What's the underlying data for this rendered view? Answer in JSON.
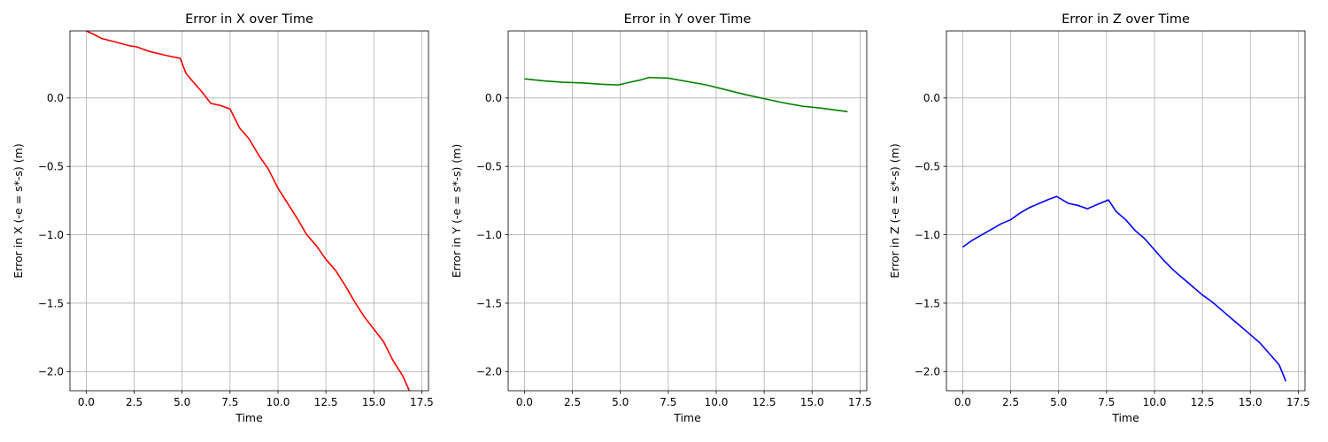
{
  "chart_data": [
    {
      "type": "line",
      "title": "Error in X over Time",
      "xlabel": "Time",
      "ylabel": "Error in X (-e = s*-s) (m)",
      "xlim": [
        -0.85,
        17.85
      ],
      "ylim": [
        -2.14,
        0.49
      ],
      "xticks": [
        0.0,
        2.5,
        5.0,
        7.5,
        10.0,
        12.5,
        15.0,
        17.5
      ],
      "xtick_labels": [
        "0.0",
        "2.5",
        "5.0",
        "7.5",
        "10.0",
        "12.5",
        "15.0",
        "17.5"
      ],
      "yticks": [
        0.0,
        -0.5,
        -1.0,
        -1.5,
        -2.0
      ],
      "ytick_labels": [
        "0.0",
        "−0.5",
        "−1.0",
        "−1.5",
        "−2.0"
      ],
      "grid": true,
      "series": [
        {
          "color": "#ff0000",
          "x": [
            0.0,
            0.4,
            0.8,
            1.5,
            2.3,
            2.6,
            3.3,
            4.2,
            4.9,
            5.2,
            5.5,
            6.0,
            6.5,
            7.0,
            7.5,
            8.0,
            8.5,
            9.0,
            9.5,
            10.0,
            10.5,
            11.0,
            11.5,
            12.0,
            12.5,
            13.0,
            13.5,
            14.0,
            14.5,
            15.0,
            15.5,
            16.0,
            16.5,
            16.85
          ],
          "y": [
            0.49,
            0.465,
            0.435,
            0.41,
            0.38,
            0.375,
            0.34,
            0.31,
            0.29,
            0.18,
            0.13,
            0.05,
            -0.04,
            -0.055,
            -0.08,
            -0.22,
            -0.3,
            -0.42,
            -0.52,
            -0.66,
            -0.77,
            -0.88,
            -1.0,
            -1.08,
            -1.18,
            -1.26,
            -1.37,
            -1.49,
            -1.6,
            -1.69,
            -1.78,
            -1.92,
            -2.03,
            -2.14
          ]
        }
      ]
    },
    {
      "type": "line",
      "title": "Error in Y over Time",
      "xlabel": "Time",
      "ylabel": "Error in Y (-e = s*-s) (m)",
      "xlim": [
        -0.85,
        17.85
      ],
      "ylim": [
        -2.14,
        0.49
      ],
      "xticks": [
        0.0,
        2.5,
        5.0,
        7.5,
        10.0,
        12.5,
        15.0,
        17.5
      ],
      "xtick_labels": [
        "0.0",
        "2.5",
        "5.0",
        "7.5",
        "10.0",
        "12.5",
        "15.0",
        "17.5"
      ],
      "yticks": [
        0.0,
        -0.5,
        -1.0,
        -1.5,
        -2.0
      ],
      "ytick_labels": [
        "0.0",
        "−0.5",
        "−1.0",
        "−1.5",
        "−2.0"
      ],
      "grid": true,
      "series": [
        {
          "color": "#008000",
          "x": [
            0.0,
            1.0,
            2.0,
            3.0,
            4.0,
            4.9,
            5.5,
            6.0,
            6.5,
            7.5,
            8.5,
            9.5,
            10.5,
            11.5,
            12.5,
            13.5,
            14.5,
            15.5,
            16.85
          ],
          "y": [
            0.14,
            0.125,
            0.115,
            0.11,
            0.1,
            0.095,
            0.115,
            0.13,
            0.15,
            0.145,
            0.12,
            0.095,
            0.06,
            0.025,
            -0.005,
            -0.035,
            -0.06,
            -0.075,
            -0.1
          ]
        }
      ]
    },
    {
      "type": "line",
      "title": "Error in Z over Time",
      "xlabel": "Time",
      "ylabel": "Error in Z (-e = s*-s) (m)",
      "xlim": [
        -0.85,
        17.85
      ],
      "ylim": [
        -2.14,
        0.49
      ],
      "xticks": [
        0.0,
        2.5,
        5.0,
        7.5,
        10.0,
        12.5,
        15.0,
        17.5
      ],
      "xtick_labels": [
        "0.0",
        "2.5",
        "5.0",
        "7.5",
        "10.0",
        "12.5",
        "15.0",
        "17.5"
      ],
      "yticks": [
        0.0,
        -0.5,
        -1.0,
        -1.5,
        -2.0
      ],
      "ytick_labels": [
        "0.0",
        "−0.5",
        "−1.0",
        "−1.5",
        "−2.0"
      ],
      "grid": true,
      "series": [
        {
          "color": "#0000ff",
          "x": [
            0.0,
            0.5,
            1.0,
            1.5,
            2.0,
            2.5,
            3.0,
            3.5,
            4.0,
            4.5,
            4.9,
            5.5,
            6.0,
            6.5,
            7.0,
            7.6,
            8.0,
            8.5,
            9.0,
            9.5,
            10.0,
            10.5,
            11.0,
            11.5,
            12.0,
            12.5,
            13.0,
            13.5,
            14.0,
            14.5,
            15.0,
            15.5,
            16.0,
            16.5,
            16.85
          ],
          "y": [
            -1.09,
            -1.04,
            -1.0,
            -0.96,
            -0.92,
            -0.89,
            -0.84,
            -0.8,
            -0.77,
            -0.74,
            -0.72,
            -0.77,
            -0.785,
            -0.81,
            -0.78,
            -0.745,
            -0.83,
            -0.89,
            -0.97,
            -1.03,
            -1.11,
            -1.19,
            -1.26,
            -1.32,
            -1.38,
            -1.44,
            -1.49,
            -1.55,
            -1.61,
            -1.67,
            -1.73,
            -1.79,
            -1.87,
            -1.95,
            -2.07
          ]
        }
      ]
    }
  ]
}
